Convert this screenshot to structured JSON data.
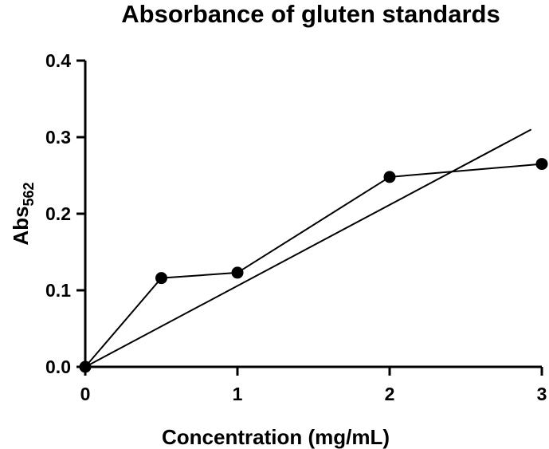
{
  "chart_data": {
    "type": "scatter",
    "title": "Absorbance of gluten standards",
    "xlabel": "Concentration (mg/mL)",
    "ylabel_main": "Abs",
    "ylabel_sub": "562",
    "xlim": [
      0,
      3
    ],
    "ylim": [
      0,
      0.4
    ],
    "x_ticks": [
      0,
      1,
      2,
      3
    ],
    "x_tick_labels": [
      "0",
      "1",
      "2",
      "3"
    ],
    "y_ticks": [
      0,
      0.1,
      0.2,
      0.3,
      0.4
    ],
    "y_tick_labels": [
      "0.0",
      "0.1",
      "0.2",
      "0.3",
      "0.4"
    ],
    "grid": false,
    "series": [
      {
        "x": [
          0,
          0.5,
          1,
          2,
          3
        ],
        "y": [
          0.0,
          0.116,
          0.123,
          0.248,
          0.265
        ]
      }
    ],
    "fit_line": {
      "x": [
        0,
        2.93
      ],
      "y": [
        0,
        0.31
      ]
    }
  }
}
